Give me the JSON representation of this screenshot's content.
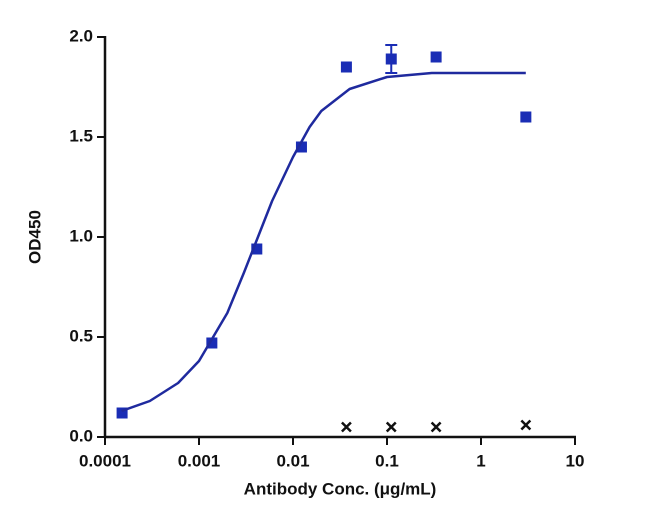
{
  "chart_data": {
    "type": "scatter",
    "xscale": "log",
    "x_label": "Antibody Conc. (μg/mL)",
    "y_label": "OD450",
    "xlim": [
      0.0001,
      10
    ],
    "xticks": [
      0.0001,
      0.001,
      0.01,
      0.1,
      1,
      10
    ],
    "ylim": [
      0,
      2
    ],
    "yticks": [
      {
        "value": 0,
        "label": "0.0"
      },
      {
        "value": 0.5,
        "label": "0.5"
      },
      {
        "value": 1,
        "label": "1.0"
      },
      {
        "value": 1.5,
        "label": "1.5"
      },
      {
        "value": 2,
        "label": "2.0"
      }
    ],
    "series": [
      {
        "marker": "square",
        "color": "#1a2db5",
        "x": [
          0.000152,
          0.00137,
          0.00412,
          0.0123,
          0.037,
          0.111,
          0.333,
          3
        ],
        "values": [
          0.12,
          0.47,
          0.94,
          1.45,
          1.85,
          1.89,
          1.9,
          1.6
        ],
        "errors": [
          null,
          null,
          null,
          null,
          null,
          0.07,
          null,
          null
        ]
      },
      {
        "marker": "cross",
        "color": "#111111",
        "x": [
          0.037,
          0.111,
          0.333,
          3
        ],
        "values": [
          0.05,
          0.05,
          0.05,
          0.06
        ]
      },
      {
        "marker": "line",
        "color": "#1f2a9e",
        "x": [
          0.00015,
          0.0003,
          0.0006,
          0.001,
          0.002,
          0.003,
          0.004,
          0.006,
          0.01,
          0.015,
          0.02,
          0.04,
          0.1,
          0.3,
          1,
          3
        ],
        "values": [
          0.13,
          0.18,
          0.27,
          0.38,
          0.62,
          0.82,
          0.97,
          1.18,
          1.4,
          1.55,
          1.63,
          1.74,
          1.8,
          1.82,
          1.82,
          1.82
        ]
      }
    ]
  }
}
